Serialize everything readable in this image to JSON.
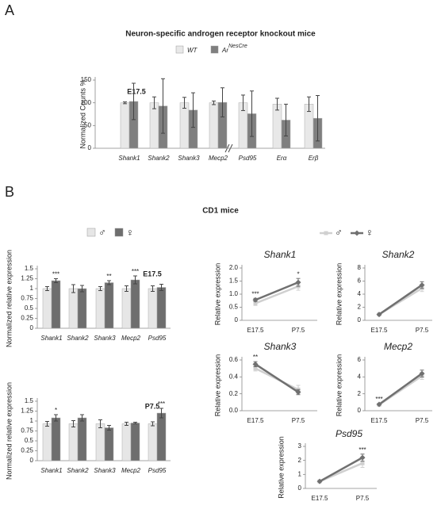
{
  "figure": {
    "panels": [
      "A",
      "B"
    ],
    "subtitle": "CD1 mice"
  },
  "chart_data": [
    {
      "type": "bar",
      "title": "Neuron-specific androgen receptor knockout mice",
      "annotation": "E17.5",
      "y_label": "Normalized Counts %",
      "categories": [
        "Shank1",
        "Shank2",
        "Shank3",
        "Mecp2",
        "Psd95",
        "Erα",
        "Erβ"
      ],
      "series": [
        {
          "name": "WT",
          "color": "#e8e8e8",
          "values": [
            100,
            100,
            100,
            100,
            100,
            97,
            97
          ],
          "errors": [
            2,
            13,
            12,
            4,
            17,
            13,
            16
          ]
        },
        {
          "name": "Ar",
          "name_superscript": "NesCre",
          "color": "#7f7f7f",
          "values": [
            103,
            93,
            84,
            101,
            76,
            62,
            66
          ],
          "errors": [
            40,
            60,
            38,
            32,
            50,
            35,
            50
          ]
        }
      ],
      "ylim": [
        0,
        150
      ],
      "yticks": [
        0,
        50,
        100,
        150
      ]
    },
    {
      "type": "bar",
      "annotation": "E17.5",
      "y_label": "Normalized relative expression",
      "categories": [
        "Shank1",
        "Shank2",
        "Shank3",
        "Mecp2",
        "Psd95"
      ],
      "series": [
        {
          "name": "♂",
          "color": "#e6e6e6",
          "values": [
            1.0,
            1.0,
            1.0,
            1.0,
            1.0
          ],
          "errors": [
            0.05,
            0.1,
            0.05,
            0.07,
            0.07
          ]
        },
        {
          "name": "♀",
          "color": "#6e6e6e",
          "values": [
            1.2,
            1.0,
            1.15,
            1.22,
            1.03
          ],
          "errors": [
            0.05,
            0.08,
            0.05,
            0.1,
            0.08
          ],
          "significance": [
            "***",
            null,
            "**",
            "***",
            null
          ]
        }
      ],
      "ylim": [
        0,
        1.5
      ],
      "yticks": [
        0,
        0.25,
        0.5,
        0.75,
        1,
        1.25,
        1.5
      ]
    },
    {
      "type": "bar",
      "annotation": "P7.5",
      "y_label": "Normalized relative expression",
      "categories": [
        "Shank1",
        "Shank2",
        "Shank3",
        "Mecp2",
        "Psd95"
      ],
      "series": [
        {
          "color": "#e6e6e6",
          "values": [
            0.93,
            0.93,
            0.93,
            0.93,
            0.93
          ],
          "errors": [
            0.06,
            0.08,
            0.1,
            0.04,
            0.05
          ]
        },
        {
          "color": "#6e6e6e",
          "values": [
            1.08,
            1.08,
            0.83,
            0.95,
            1.2
          ],
          "errors": [
            0.08,
            0.08,
            0.06,
            0.02,
            0.12
          ],
          "significance": [
            "*",
            null,
            null,
            null,
            "***"
          ]
        }
      ],
      "ylim": [
        0,
        1.5
      ],
      "yticks": [
        0,
        0.25,
        0.5,
        0.75,
        1,
        1.25,
        1.5
      ]
    },
    {
      "type": "line",
      "title": "Shank1",
      "y_label": "Relative expression",
      "categories": [
        "E17.5",
        "P7.5"
      ],
      "series": [
        {
          "name": "♂",
          "color": "#d0d0d0",
          "marker": "square",
          "values": [
            0.65,
            1.3
          ],
          "errors": [
            0.08,
            0.15
          ]
        },
        {
          "name": "♀",
          "color": "#707070",
          "marker": "diamond",
          "values": [
            0.78,
            1.45
          ],
          "errors": [
            0.06,
            0.15
          ],
          "significance": [
            "***",
            "*"
          ]
        }
      ],
      "ylim": [
        0,
        2
      ],
      "yticks": [
        {
          "value": 0,
          "label": "0"
        },
        {
          "value": 0.5,
          "label": "0.5"
        },
        {
          "value": 1,
          "label": "1.0"
        },
        {
          "value": 1.5,
          "label": "1.5"
        },
        {
          "value": 2,
          "label": "2.0"
        }
      ]
    },
    {
      "type": "line",
      "title": "Shank2",
      "y_label": "Relative expression",
      "categories": [
        "E17.5",
        "P7.5"
      ],
      "series": [
        {
          "color": "#d0d0d0",
          "marker": "square",
          "values": [
            0.9,
            4.9
          ],
          "errors": [
            0.1,
            0.5
          ]
        },
        {
          "color": "#707070",
          "marker": "diamond",
          "values": [
            0.9,
            5.4
          ],
          "errors": [
            0.1,
            0.5
          ]
        }
      ],
      "ylim": [
        0,
        8
      ],
      "yticks": [
        0,
        2,
        4,
        6,
        8
      ]
    },
    {
      "type": "line",
      "title": "Shank3",
      "y_label": "Relative expression",
      "categories": [
        "E17.5",
        "P7.5"
      ],
      "series": [
        {
          "color": "#d0d0d0",
          "marker": "square",
          "values": [
            0.5,
            0.25
          ],
          "errors": [
            0.03,
            0.05
          ]
        },
        {
          "color": "#707070",
          "marker": "diamond",
          "values": [
            0.55,
            0.22
          ],
          "errors": [
            0.03,
            0.03
          ],
          "significance": [
            "**",
            null
          ]
        }
      ],
      "ylim": [
        0,
        0.6
      ],
      "yticks": [
        {
          "value": 0,
          "label": "0.0"
        },
        0.2,
        0.4,
        0.6
      ]
    },
    {
      "type": "line",
      "title": "Mecp2",
      "y_label": "Relative expression",
      "categories": [
        "E17.5",
        "P7.5"
      ],
      "series": [
        {
          "color": "#d0d0d0",
          "marker": "square",
          "values": [
            0.7,
            4.1
          ],
          "errors": [
            0.1,
            0.4
          ]
        },
        {
          "color": "#707070",
          "marker": "diamond",
          "values": [
            0.75,
            4.4
          ],
          "errors": [
            0.1,
            0.4
          ],
          "significance": [
            "***",
            null
          ]
        }
      ],
      "ylim": [
        0,
        6
      ],
      "yticks": [
        0,
        2,
        4,
        6
      ]
    },
    {
      "type": "line",
      "title": "Psd95",
      "y_label": "Relative expression",
      "categories": [
        "E17.5",
        "P7.5"
      ],
      "series": [
        {
          "color": "#d0d0d0",
          "marker": "square",
          "values": [
            0.5,
            1.8
          ],
          "errors": [
            0.05,
            0.3
          ]
        },
        {
          "color": "#707070",
          "marker": "diamond",
          "values": [
            0.5,
            2.2
          ],
          "errors": [
            0.05,
            0.25
          ],
          "significance": [
            null,
            "***"
          ]
        }
      ],
      "ylim": [
        0,
        3
      ],
      "yticks": [
        0,
        1,
        2,
        3
      ]
    }
  ]
}
